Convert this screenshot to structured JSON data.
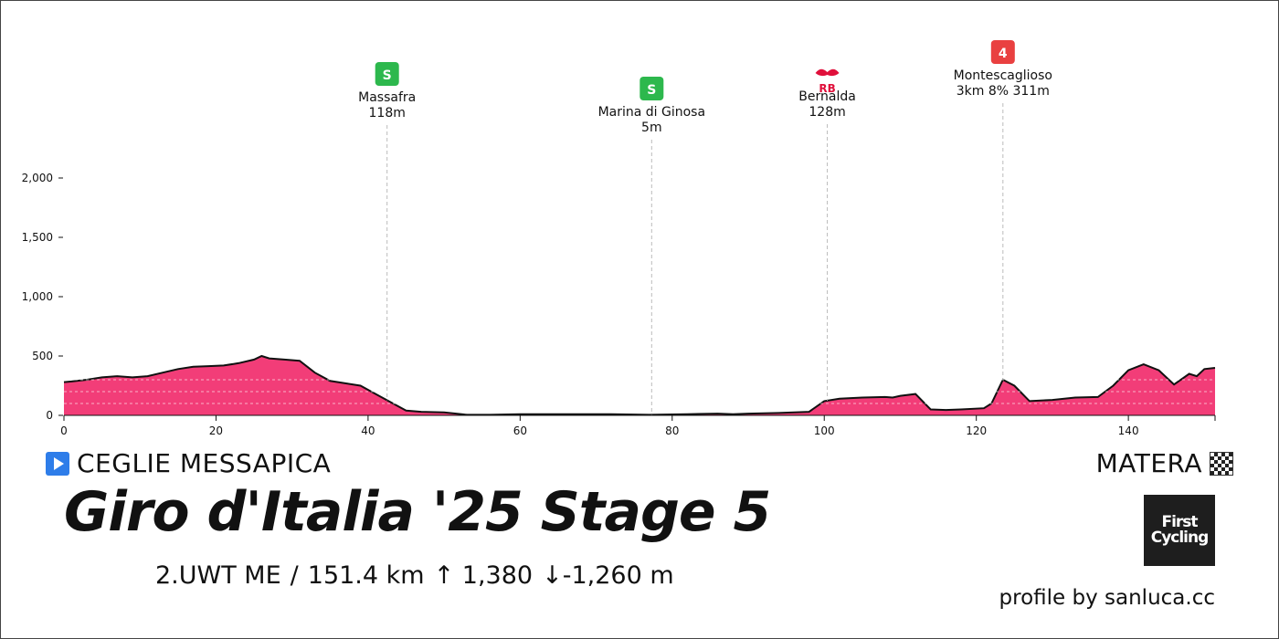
{
  "chart_data": {
    "type": "area",
    "xlim": [
      0,
      151.4
    ],
    "ylim": [
      0,
      2000
    ],
    "x_ticks": [
      0,
      20,
      40,
      60,
      80,
      100,
      120,
      140
    ],
    "y_ticks": [
      0,
      500,
      1000,
      1500,
      2000
    ],
    "y_tick_labels": [
      "0",
      "500",
      "1,000",
      "1,500",
      "2,000"
    ],
    "x": [
      0,
      1,
      3,
      5,
      7,
      9,
      11,
      13,
      15,
      17,
      19,
      21,
      23,
      25,
      26,
      27,
      29,
      31,
      33,
      35,
      37,
      39,
      41,
      43,
      45,
      47,
      50,
      53,
      56,
      60,
      64,
      68,
      72,
      77,
      82,
      86,
      88,
      90,
      94,
      98,
      100,
      102,
      105,
      108,
      109,
      110,
      112,
      114,
      116,
      118,
      121,
      122,
      123.5,
      125,
      127,
      130,
      133,
      136,
      138,
      140,
      142,
      144,
      146,
      148,
      149,
      150,
      151.4
    ],
    "elevation": [
      280,
      285,
      300,
      320,
      330,
      320,
      330,
      360,
      390,
      410,
      415,
      420,
      440,
      470,
      500,
      480,
      470,
      460,
      360,
      290,
      270,
      250,
      180,
      110,
      40,
      30,
      25,
      5,
      5,
      10,
      10,
      10,
      10,
      5,
      10,
      15,
      10,
      15,
      20,
      30,
      120,
      140,
      150,
      155,
      150,
      165,
      180,
      50,
      45,
      50,
      60,
      100,
      300,
      250,
      120,
      130,
      150,
      155,
      250,
      380,
      430,
      380,
      260,
      350,
      330,
      390,
      400
    ],
    "fill_color": "#f23d78",
    "markers": [
      {
        "km": 42.5,
        "name": "Massafra",
        "detail": "118m",
        "badge": "S",
        "badge_color": "#2db84d"
      },
      {
        "km": 77.3,
        "name": "Marina di Ginosa",
        "detail": "5m",
        "badge": "S",
        "badge_color": "#2db84d"
      },
      {
        "km": 100.4,
        "name": "Bernalda",
        "detail": "128m",
        "badge": "RB",
        "badge_color": "#e0103b"
      },
      {
        "km": 123.5,
        "name": "Montescaglioso",
        "detail": "3km 8% 311m",
        "badge": "4",
        "badge_color": "#e94040"
      }
    ]
  },
  "start_icon": "play-icon",
  "start_city": "CEGLIE MESSAPICA",
  "finish_city": "MATERA",
  "finish_icon": "checkered-flag-icon",
  "title": "Giro d'Italia '25 Stage 5",
  "stats": {
    "category": "2.UWT ME",
    "separator": "/",
    "distance": "151.4 km",
    "ascent": "↑ 1,380",
    "descent": "↓-1,260 m"
  },
  "logo": {
    "line1": "First",
    "line2": "Cycling"
  },
  "credit": "profile by sanluca.cc"
}
